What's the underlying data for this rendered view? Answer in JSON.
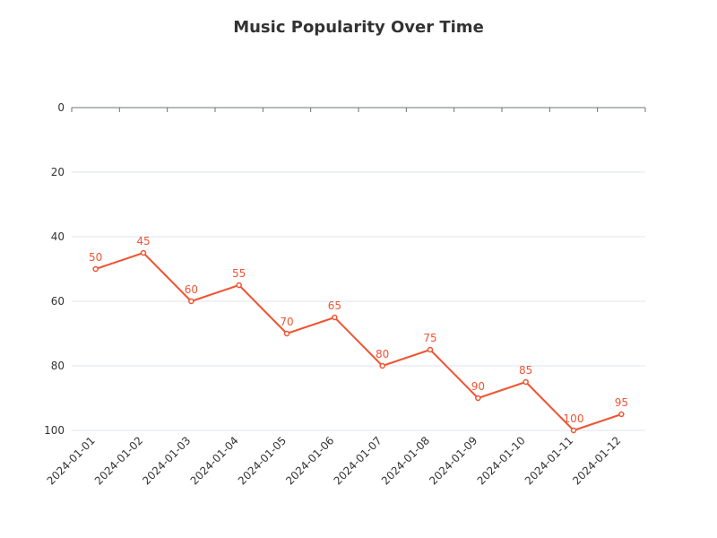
{
  "colors": {
    "series": "#ee5533",
    "grid": "#e0e6f1",
    "axis": "#6e7079",
    "text": "#333333"
  },
  "chart_data": {
    "type": "line",
    "title": "Music Popularity Over Time",
    "xlabel": "",
    "ylabel": "",
    "x": [
      "2024-01-01",
      "2024-01-02",
      "2024-01-03",
      "2024-01-04",
      "2024-01-05",
      "2024-01-06",
      "2024-01-07",
      "2024-01-08",
      "2024-01-09",
      "2024-01-10",
      "2024-01-11",
      "2024-01-12"
    ],
    "series": [
      {
        "values": [
          50,
          45,
          60,
          55,
          70,
          65,
          80,
          75,
          90,
          85,
          100,
          95
        ]
      }
    ],
    "ylim": [
      0,
      100
    ],
    "y_inverted": true,
    "y_ticks": [
      0,
      20,
      40,
      60,
      80,
      100
    ],
    "grid": true,
    "data_labels": true,
    "legend": "none"
  }
}
